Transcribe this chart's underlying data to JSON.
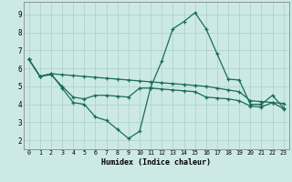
{
  "xlabel": "Humidex (Indice chaleur)",
  "xlim_left": -0.5,
  "xlim_right": 23.5,
  "ylim_bottom": 1.5,
  "ylim_top": 9.7,
  "xticks": [
    0,
    1,
    2,
    3,
    4,
    5,
    6,
    7,
    8,
    9,
    10,
    11,
    12,
    13,
    14,
    15,
    16,
    17,
    18,
    19,
    20,
    21,
    22,
    23
  ],
  "yticks": [
    2,
    3,
    4,
    5,
    6,
    7,
    8,
    9
  ],
  "bg_color": "#cce9e5",
  "grid_color": "#aed4cf",
  "line_color": "#1a6b5a",
  "line1_x": [
    0,
    1,
    2,
    3,
    4,
    5,
    6,
    7,
    8,
    9,
    10,
    11,
    12,
    13,
    14,
    15,
    16,
    17,
    18,
    19,
    20,
    21,
    22,
    23
  ],
  "line1_y": [
    6.5,
    5.55,
    5.7,
    4.9,
    4.1,
    4.0,
    3.3,
    3.1,
    2.6,
    2.1,
    2.5,
    4.95,
    6.4,
    8.2,
    8.6,
    9.1,
    8.2,
    6.8,
    5.4,
    5.35,
    4.0,
    4.0,
    4.5,
    3.8
  ],
  "line2_x": [
    0,
    1,
    2,
    3,
    4,
    5,
    6,
    7,
    8,
    9,
    10,
    11,
    12,
    13,
    14,
    15,
    16,
    17,
    18,
    19,
    20,
    21,
    22,
    23
  ],
  "line2_y": [
    6.5,
    5.55,
    5.7,
    5.65,
    5.6,
    5.55,
    5.5,
    5.45,
    5.4,
    5.35,
    5.3,
    5.25,
    5.2,
    5.15,
    5.1,
    5.05,
    5.0,
    4.9,
    4.8,
    4.7,
    4.2,
    4.15,
    4.1,
    4.05
  ],
  "line3_x": [
    0,
    1,
    2,
    3,
    4,
    5,
    6,
    7,
    8,
    9,
    10,
    11,
    12,
    13,
    14,
    15,
    16,
    17,
    18,
    19,
    20,
    21,
    22,
    23
  ],
  "line3_y": [
    6.5,
    5.55,
    5.65,
    5.0,
    4.4,
    4.3,
    4.5,
    4.5,
    4.45,
    4.4,
    4.9,
    4.9,
    4.85,
    4.8,
    4.75,
    4.7,
    4.4,
    4.35,
    4.3,
    4.2,
    3.9,
    3.85,
    4.1,
    3.75
  ]
}
